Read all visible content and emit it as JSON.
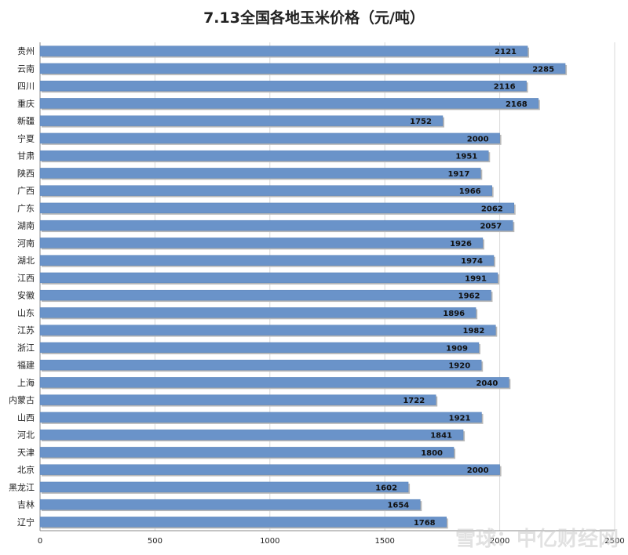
{
  "chart_data": {
    "type": "bar",
    "orientation": "horizontal",
    "title": "7.13全国各地玉米价格（元/吨）",
    "categories": [
      "贵州",
      "云南",
      "四川",
      "重庆",
      "新疆",
      "宁夏",
      "甘肃",
      "陕西",
      "广西",
      "广东",
      "湖南",
      "河南",
      "湖北",
      "江西",
      "安徽",
      "山东",
      "江苏",
      "浙江",
      "福建",
      "上海",
      "内蒙古",
      "山西",
      "河北",
      "天津",
      "北京",
      "黑龙江",
      "吉林",
      "辽宁"
    ],
    "values": [
      2121,
      2285,
      2116,
      2168,
      1752,
      2000,
      1951,
      1917,
      1966,
      2062,
      2057,
      1926,
      1974,
      1991,
      1962,
      1896,
      1982,
      1909,
      1920,
      2040,
      1722,
      1921,
      1841,
      1800,
      2000,
      1602,
      1654,
      1768
    ],
    "xlim": [
      0,
      2500
    ],
    "xticks": [
      "0",
      "500",
      "1000",
      "1500",
      "2000",
      "2500"
    ],
    "grid": true,
    "bar_color": "#6a93c9"
  },
  "watermark": "雪球：中亿财经网"
}
